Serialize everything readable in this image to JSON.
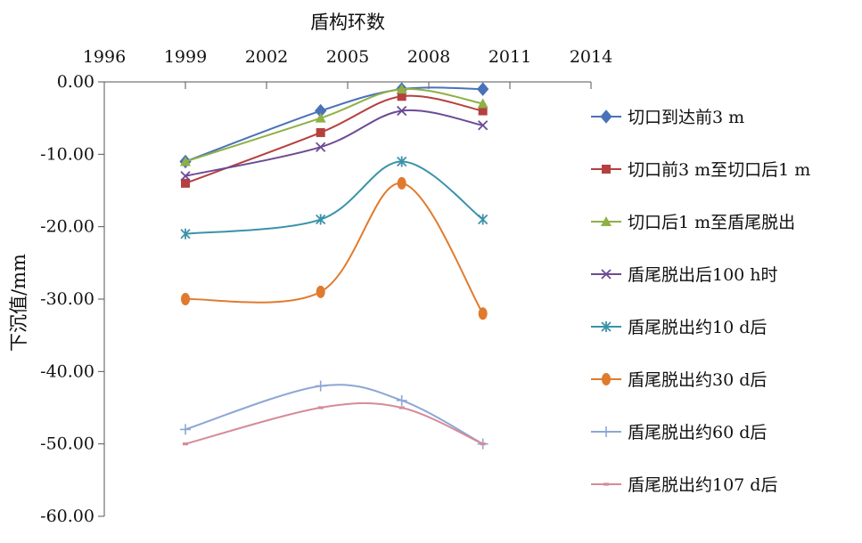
{
  "chart_data": {
    "type": "line",
    "xlabel": "盾构环数",
    "ylabel": "下沉值/mm",
    "x_ticks": [
      "1996",
      "1999",
      "2002",
      "2005",
      "2008",
      "2011",
      "2014"
    ],
    "y_ticks": [
      "0.00",
      "-10.00",
      "-20.00",
      "-30.00",
      "-40.00",
      "-50.00",
      "-60.00"
    ],
    "xlim": [
      1996,
      2014
    ],
    "ylim": [
      -60,
      0
    ],
    "x_axis_position": "top",
    "legend_position": "right",
    "grid": false,
    "smooth": true,
    "x": [
      1999,
      2004,
      2007,
      2010
    ],
    "series": [
      {
        "name": "切口到达前3 m",
        "values": [
          -11,
          -4,
          -1,
          -1
        ],
        "color": "#4a72b8",
        "marker": "diamond"
      },
      {
        "name": "切口前3 m至切口后1 m",
        "values": [
          -14,
          -7,
          -2,
          -4
        ],
        "color": "#b5403f",
        "marker": "square"
      },
      {
        "name": "切口后1 m至盾尾脱出",
        "values": [
          -11,
          -5,
          -1,
          -3
        ],
        "color": "#8eb046",
        "marker": "triangle"
      },
      {
        "name": "盾尾脱出后100 h时",
        "values": [
          -13,
          -9,
          -4,
          -6
        ],
        "color": "#6b4b95",
        "marker": "x"
      },
      {
        "name": "盾尾脱出约10 d后",
        "values": [
          -21,
          -19,
          -11,
          -19
        ],
        "color": "#3a93a9",
        "marker": "star"
      },
      {
        "name": "盾尾脱出约30 d后",
        "values": [
          -30,
          -29,
          -14,
          -32
        ],
        "color": "#e07b2e",
        "marker": "circle"
      },
      {
        "name": "盾尾脱出约60 d后",
        "values": [
          -48,
          -42,
          -44,
          -50
        ],
        "color": "#8da6d6",
        "marker": "plus"
      },
      {
        "name": "盾尾脱出约107 d后",
        "values": [
          -50,
          -45,
          -45,
          -50
        ],
        "color": "#d58b97",
        "marker": "dash"
      }
    ]
  }
}
